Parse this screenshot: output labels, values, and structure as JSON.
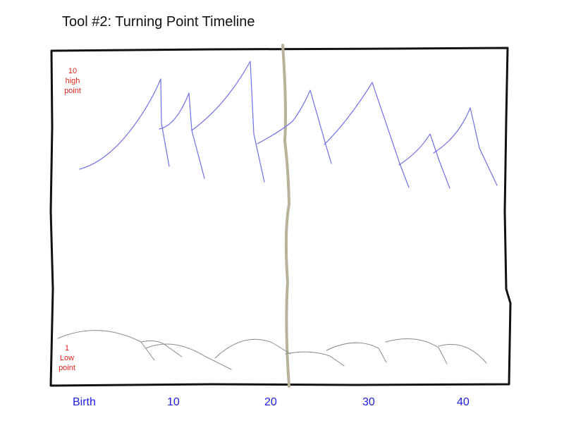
{
  "title": "Tool #2: Turning Point Timeline",
  "scale": {
    "high": [
      "10",
      "high",
      "point"
    ],
    "low": [
      "1",
      "Low",
      "point"
    ]
  },
  "timeline_axis": [
    "Birth",
    "10",
    "20",
    "30",
    "40"
  ],
  "colors": {
    "frame": "#111111",
    "high_points_line": "#6f6fe8",
    "low_points_line": "#8a8a8a",
    "present_marker": "#b7b39a",
    "scale_labels": "#e0241c",
    "axis_labels": "#1c1ce6"
  }
}
